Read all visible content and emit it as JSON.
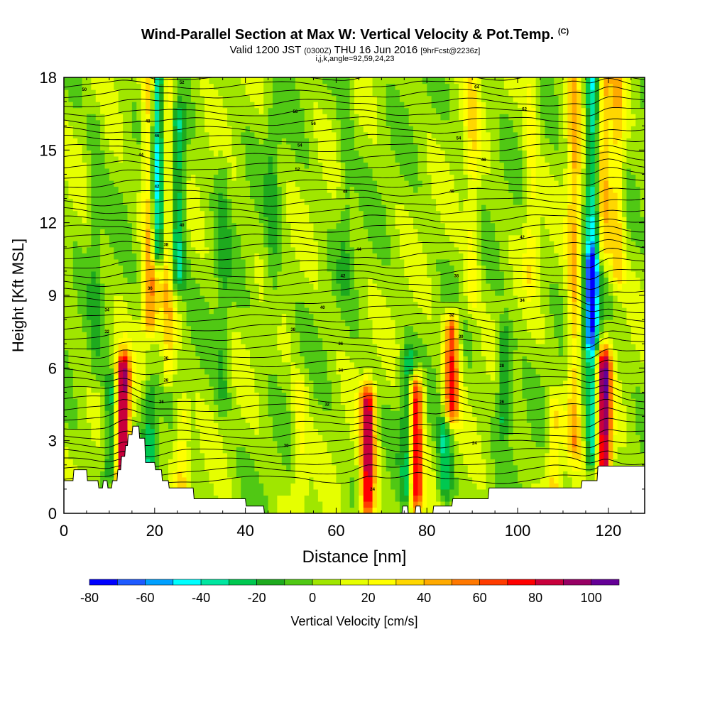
{
  "header": {
    "title": "Wind-Parallel Section at Max W: Vertical Velocity & Pot.Temp.",
    "copyright": "(C)",
    "valid_prefix": "Valid 1200 JST",
    "utc_time": "(0300Z)",
    "valid_suffix": "THU 16 Jun 2016",
    "forecast": "[9hrFcst@2236z]",
    "params": "i,j,k,angle=92,59,24,23"
  },
  "colors": {
    "scale": [
      "#0000ff",
      "#1e5aff",
      "#00a0ff",
      "#00ffff",
      "#00e6a0",
      "#00c850",
      "#1eaa1e",
      "#50c814",
      "#a0e600",
      "#e6ff00",
      "#ffff00",
      "#ffd700",
      "#ffaa00",
      "#ff7800",
      "#ff3c00",
      "#ff0000",
      "#c8003c",
      "#960064",
      "#640096"
    ],
    "terrain": "#ffffff",
    "contour": "#000000"
  },
  "chart_data": {
    "type": "heatmap",
    "xlabel": "Distance [nm]",
    "ylabel": "Height [Kft MSL]",
    "xlim": [
      0,
      128
    ],
    "ylim": [
      0,
      18
    ],
    "xticks": [
      0,
      20,
      40,
      60,
      80,
      100,
      120
    ],
    "yticks": [
      0,
      3,
      6,
      9,
      12,
      15,
      18
    ],
    "colorbar": {
      "label": "Vertical Velocity [cm/s]",
      "ticks": [
        -80,
        -60,
        -40,
        -20,
        0,
        20,
        40,
        60,
        80,
        100
      ],
      "range": [
        -80,
        110
      ],
      "step": 10
    },
    "background_value": 5,
    "field_features": [
      {
        "x": 13,
        "ymin": 1.2,
        "ymax": 5.8,
        "w": 95
      },
      {
        "x": 10.5,
        "ymin": 2,
        "ymax": 5,
        "w": -35
      },
      {
        "x": 19,
        "ymin": 8,
        "ymax": 18,
        "w": 45
      },
      {
        "x": 20.5,
        "ymin": 11,
        "ymax": 18,
        "w": -60
      },
      {
        "x": 23,
        "ymin": 6,
        "ymax": 18,
        "w": 30
      },
      {
        "x": 25,
        "ymin": 10,
        "ymax": 16,
        "w": -40
      },
      {
        "x": 19,
        "ymin": 1.5,
        "ymax": 4.5,
        "w": -30
      },
      {
        "x": 26,
        "ymin": 0.8,
        "ymax": 4,
        "w": 25
      },
      {
        "x": 67,
        "ymin": 0.5,
        "ymax": 4.5,
        "w": 80
      },
      {
        "x": 77.5,
        "ymin": 0.8,
        "ymax": 5,
        "w": 85
      },
      {
        "x": 76,
        "ymin": 1,
        "ymax": 6,
        "w": -40
      },
      {
        "x": 85.5,
        "ymin": 4.5,
        "ymax": 7.5,
        "w": 65
      },
      {
        "x": 84,
        "ymin": 1.2,
        "ymax": 3.2,
        "w": -35
      },
      {
        "x": 97,
        "ymin": 4,
        "ymax": 7,
        "w": -30
      },
      {
        "x": 108,
        "ymin": 0.8,
        "ymax": 4,
        "w": 30
      },
      {
        "x": 112.5,
        "ymin": 3,
        "ymax": 18,
        "w": 35
      },
      {
        "x": 116.5,
        "ymin": 2.5,
        "ymax": 18,
        "w": -45
      },
      {
        "x": 119,
        "ymin": 2,
        "ymax": 6,
        "w": 95
      },
      {
        "x": 119,
        "ymin": 11,
        "ymax": 18,
        "w": 35
      },
      {
        "x": 122,
        "ymin": 10,
        "ymax": 18,
        "w": 30
      },
      {
        "x": 116,
        "ymin": 7.5,
        "ymax": 10,
        "w": -40
      },
      {
        "x": 52,
        "ymin": 1,
        "ymax": 5,
        "w": 20
      },
      {
        "x": 46,
        "ymin": 8,
        "ymax": 16,
        "w": -15
      },
      {
        "x": 90,
        "ymin": 9,
        "ymax": 18,
        "w": 20
      },
      {
        "x": 103,
        "ymin": 10,
        "ymax": 18,
        "w": 20
      },
      {
        "x": 62,
        "ymin": 10,
        "ymax": 18,
        "w": -12
      },
      {
        "x": 35,
        "ymin": 5,
        "ymax": 14,
        "w": -15
      },
      {
        "x": 7,
        "ymin": 6,
        "ymax": 16,
        "w": -12
      }
    ],
    "terrain": {
      "x": [
        0,
        2,
        2.2,
        5,
        5.2,
        7.5,
        7.7,
        8.5,
        8.7,
        9.5,
        9.7,
        10.5,
        10.7,
        11.7,
        11.9,
        12.5,
        12.7,
        13.4,
        13.6,
        14,
        14.2,
        15,
        15.2,
        16.5,
        16.7,
        17.8,
        18,
        20,
        20.2,
        21.5,
        21.7,
        23,
        23.2,
        28.5,
        28.7,
        40,
        40.2,
        44,
        44.2,
        74.5,
        74.7,
        75.7,
        75.9,
        77.4,
        77.6,
        78.5,
        78.7,
        81.3,
        81.5,
        85.5,
        85.7,
        93.5,
        93.7,
        114,
        114.2,
        117.5,
        117.7,
        128
      ],
      "height": [
        1.35,
        1.35,
        1.8,
        1.8,
        1.35,
        1.35,
        1.05,
        1.05,
        1.35,
        1.35,
        1.05,
        1.05,
        1.35,
        1.35,
        1.8,
        1.8,
        2.35,
        2.35,
        2.8,
        2.8,
        3.25,
        3.25,
        3.6,
        3.6,
        3.1,
        3.1,
        2.1,
        2.1,
        1.8,
        1.8,
        1.35,
        1.35,
        1.05,
        1.05,
        0.6,
        0.6,
        0.3,
        0.3,
        0,
        0,
        0.3,
        0.3,
        0,
        0,
        0.3,
        0.3,
        0,
        0,
        0.3,
        0.3,
        0.6,
        0.6,
        1.05,
        1.05,
        1.35,
        1.35,
        1.95,
        1.95
      ]
    },
    "contour_labels": [
      {
        "x": 4.5,
        "y": 17.5,
        "text": "50"
      },
      {
        "x": 26,
        "y": 17.8,
        "text": "52"
      },
      {
        "x": 18.5,
        "y": 16.2,
        "text": "48"
      },
      {
        "x": 20.5,
        "y": 15.6,
        "text": "46"
      },
      {
        "x": 17,
        "y": 14.8,
        "text": "44"
      },
      {
        "x": 20.5,
        "y": 13.5,
        "text": "42"
      },
      {
        "x": 26,
        "y": 11.9,
        "text": "40"
      },
      {
        "x": 22.5,
        "y": 11.1,
        "text": "38"
      },
      {
        "x": 19,
        "y": 9.3,
        "text": "36"
      },
      {
        "x": 9.5,
        "y": 8.4,
        "text": "34"
      },
      {
        "x": 9.5,
        "y": 7.5,
        "text": "32"
      },
      {
        "x": 22.5,
        "y": 6.4,
        "text": "30"
      },
      {
        "x": 22.5,
        "y": 5.5,
        "text": "28"
      },
      {
        "x": 21.5,
        "y": 4.6,
        "text": "26"
      },
      {
        "x": 51,
        "y": 16.6,
        "text": "58"
      },
      {
        "x": 55,
        "y": 16.1,
        "text": "56"
      },
      {
        "x": 52,
        "y": 15.2,
        "text": "54"
      },
      {
        "x": 51.5,
        "y": 14.2,
        "text": "52"
      },
      {
        "x": 62,
        "y": 13.3,
        "text": "48"
      },
      {
        "x": 65,
        "y": 10.9,
        "text": "44"
      },
      {
        "x": 61.5,
        "y": 9.8,
        "text": "42"
      },
      {
        "x": 57,
        "y": 8.5,
        "text": "40"
      },
      {
        "x": 50.5,
        "y": 7.6,
        "text": "38"
      },
      {
        "x": 61,
        "y": 7,
        "text": "36"
      },
      {
        "x": 61,
        "y": 5.9,
        "text": "34"
      },
      {
        "x": 58,
        "y": 4.5,
        "text": "32"
      },
      {
        "x": 49,
        "y": 2.8,
        "text": "30"
      },
      {
        "x": 68,
        "y": 1,
        "text": "24"
      },
      {
        "x": 91,
        "y": 17.6,
        "text": "64"
      },
      {
        "x": 87,
        "y": 15.5,
        "text": "54"
      },
      {
        "x": 92.5,
        "y": 14.6,
        "text": "48"
      },
      {
        "x": 85.5,
        "y": 13.3,
        "text": "46"
      },
      {
        "x": 101,
        "y": 11.4,
        "text": "42"
      },
      {
        "x": 86.5,
        "y": 9.8,
        "text": "38"
      },
      {
        "x": 101,
        "y": 8.8,
        "text": "34"
      },
      {
        "x": 85.5,
        "y": 8.2,
        "text": "32"
      },
      {
        "x": 87.5,
        "y": 7.3,
        "text": "30"
      },
      {
        "x": 96.5,
        "y": 6.1,
        "text": "28"
      },
      {
        "x": 96.5,
        "y": 4.6,
        "text": "26"
      },
      {
        "x": 90.5,
        "y": 2.9,
        "text": "24"
      },
      {
        "x": 101.5,
        "y": 16.7,
        "text": "62"
      }
    ]
  }
}
